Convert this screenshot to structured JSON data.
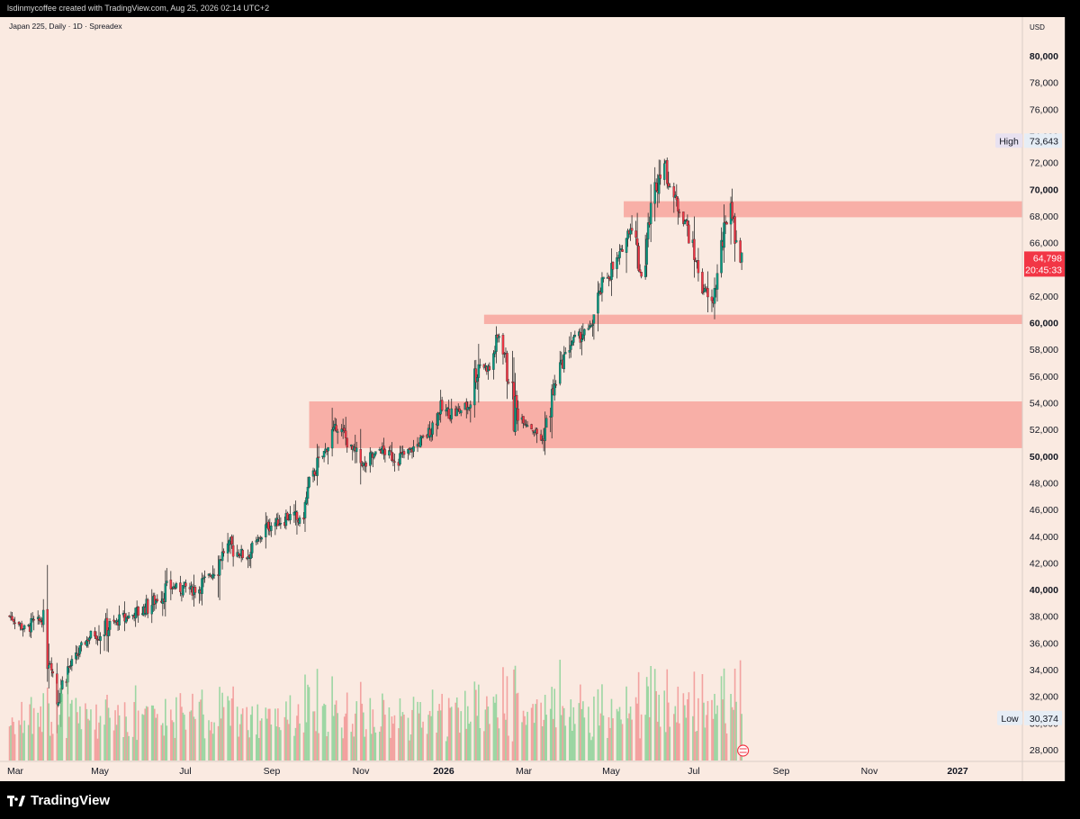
{
  "header": {
    "attribution": "lsdinmycoffee created with TradingView.com, Aug 25, 2026 02:14 UTC+2"
  },
  "footer": {
    "brand": "TradingView"
  },
  "chart_data": {
    "type": "candlestick",
    "title": "Japan 225, Daily · 1D · Spreadex",
    "currency": "USD",
    "x_ticks": [
      "Mar",
      "May",
      "Jul",
      "Sep",
      "Nov",
      "2026",
      "Mar",
      "May",
      "Jul",
      "Sep",
      "Nov",
      "2027"
    ],
    "y_ticks": [
      28000,
      30000,
      32000,
      34000,
      36000,
      38000,
      40000,
      42000,
      44000,
      46000,
      48000,
      50000,
      52000,
      54000,
      56000,
      58000,
      60000,
      62000,
      64000,
      66000,
      68000,
      70000,
      72000,
      74000,
      76000,
      78000,
      80000
    ],
    "y_ticks_bold": [
      40000,
      50000,
      60000,
      70000,
      80000
    ],
    "ylim": [
      25500,
      82000
    ],
    "labels": {
      "high": {
        "text": "High",
        "value": "73,643",
        "num": 73643
      },
      "low": {
        "text": "Low",
        "value": "30,374",
        "num": 30374
      },
      "last": {
        "value": "64,798",
        "num": 64798,
        "countdown": "20:45:33"
      }
    },
    "zones": [
      {
        "from": "2025-10-10",
        "y_low": 50600,
        "y_high": 54100
      },
      {
        "from": "2026-02-16",
        "y_low": 59900,
        "y_high": 60600
      },
      {
        "from": "2026-05-30",
        "y_low": 67900,
        "y_high": 69100
      }
    ],
    "price_path": [
      [
        "2025-03-01",
        38200
      ],
      [
        "2025-03-15",
        37000
      ],
      [
        "2025-03-28",
        37800
      ],
      [
        "2025-04-07",
        32000
      ],
      [
        "2025-04-15",
        34000
      ],
      [
        "2025-05-01",
        36500
      ],
      [
        "2025-05-20",
        37500
      ],
      [
        "2025-06-10",
        38500
      ],
      [
        "2025-06-30",
        40200
      ],
      [
        "2025-07-20",
        40000
      ],
      [
        "2025-08-01",
        41500
      ],
      [
        "2025-08-10",
        43200
      ],
      [
        "2025-08-25",
        42500
      ],
      [
        "2025-09-10",
        44800
      ],
      [
        "2025-09-25",
        45500
      ],
      [
        "2025-10-05",
        45000
      ],
      [
        "2025-10-10",
        48000
      ],
      [
        "2025-10-20",
        50000
      ],
      [
        "2025-10-31",
        52500
      ],
      [
        "2025-11-10",
        50500
      ],
      [
        "2025-11-20",
        49200
      ],
      [
        "2025-12-01",
        50500
      ],
      [
        "2025-12-15",
        49800
      ],
      [
        "2025-12-25",
        50500
      ],
      [
        "2026-01-05",
        51500
      ],
      [
        "2026-01-15",
        53500
      ],
      [
        "2026-01-25",
        53200
      ],
      [
        "2026-02-05",
        53800
      ],
      [
        "2026-02-12",
        57000
      ],
      [
        "2026-02-20",
        56500
      ],
      [
        "2026-02-28",
        59500
      ],
      [
        "2026-03-10",
        53500
      ],
      [
        "2026-03-20",
        52500
      ],
      [
        "2026-03-31",
        51200
      ],
      [
        "2026-04-10",
        55500
      ],
      [
        "2026-04-20",
        58500
      ],
      [
        "2026-05-05",
        59500
      ],
      [
        "2026-05-15",
        63000
      ],
      [
        "2026-05-25",
        64500
      ],
      [
        "2026-06-05",
        67500
      ],
      [
        "2026-06-12",
        63500
      ],
      [
        "2026-06-20",
        69000
      ],
      [
        "2026-06-28",
        72500
      ],
      [
        "2026-07-05",
        69500
      ],
      [
        "2026-07-15",
        67500
      ],
      [
        "2026-07-25",
        63500
      ],
      [
        "2026-08-03",
        61000
      ],
      [
        "2026-08-12",
        66500
      ],
      [
        "2026-08-17",
        69200
      ],
      [
        "2026-08-22",
        65500
      ],
      [
        "2026-08-25",
        64798
      ]
    ],
    "volume_ticks_note": "",
    "colors": {
      "background": "#faeae1",
      "up": "#089981",
      "down": "#f23645",
      "zone": "#f7a59c",
      "last_label": "#f23645",
      "axis_text": "#131722"
    }
  }
}
